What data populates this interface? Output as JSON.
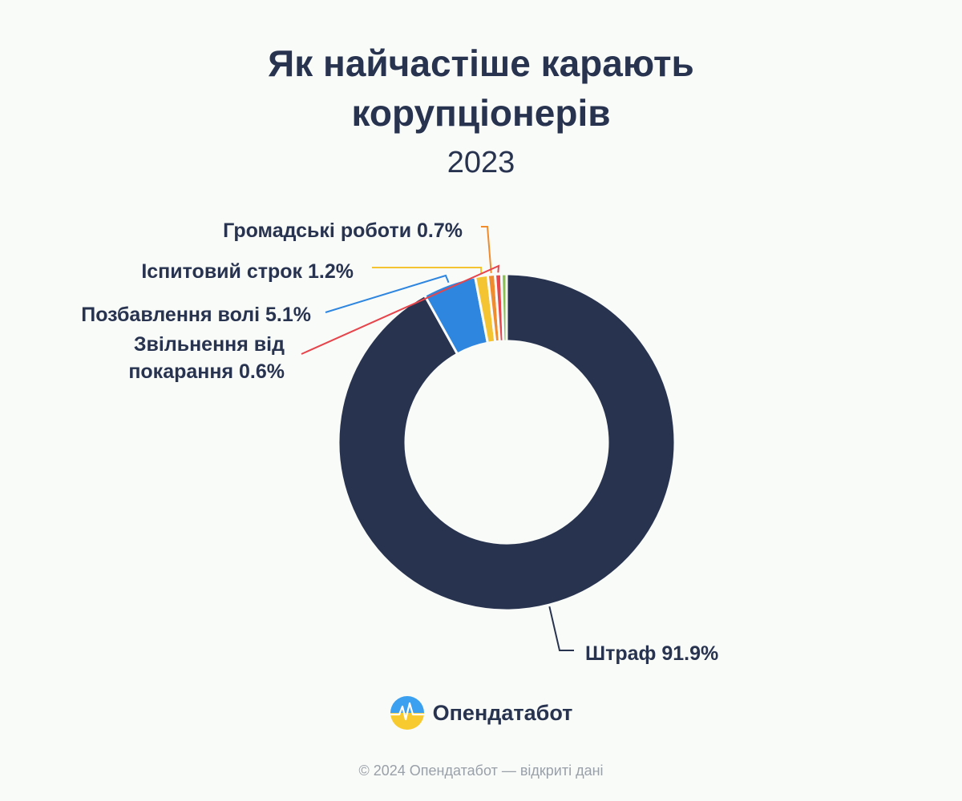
{
  "header": {
    "title_line1": "Як найчастіше карають",
    "title_line2": "корупціонерів",
    "subtitle": "2023"
  },
  "chart_data": {
    "type": "pie",
    "variant": "donut",
    "title": "Як найчастіше карають корупціонерів",
    "subtitle": "2023",
    "unit": "%",
    "slices": [
      {
        "label": "Штраф",
        "value": 91.9,
        "color": "#283350",
        "label_text": "Штраф 91.9%"
      },
      {
        "label": "Позбавлення волі",
        "value": 5.1,
        "color": "#2e86df",
        "label_text": "Позбавлення волі 5.1%"
      },
      {
        "label": "Іспитовий строк",
        "value": 1.2,
        "color": "#f5c433",
        "label_text": "Іспитовий строк 1.2%"
      },
      {
        "label": "Громадські роботи",
        "value": 0.7,
        "color": "#ef8c2e",
        "label_text": "Громадські роботи 0.7%"
      },
      {
        "label": "Звільнення від покарання",
        "value": 0.6,
        "color": "#e5454b",
        "label_text_line1": "Звільнення від",
        "label_text_line2": "покарання 0.6%"
      },
      {
        "label": "",
        "value": 0.5,
        "color": "#8cc152"
      }
    ]
  },
  "brand": {
    "name": "Опендатабот",
    "icon": "opendatabot-logo-icon"
  },
  "footer": {
    "text": "© 2024 Опендатабот — відкриті дані"
  }
}
